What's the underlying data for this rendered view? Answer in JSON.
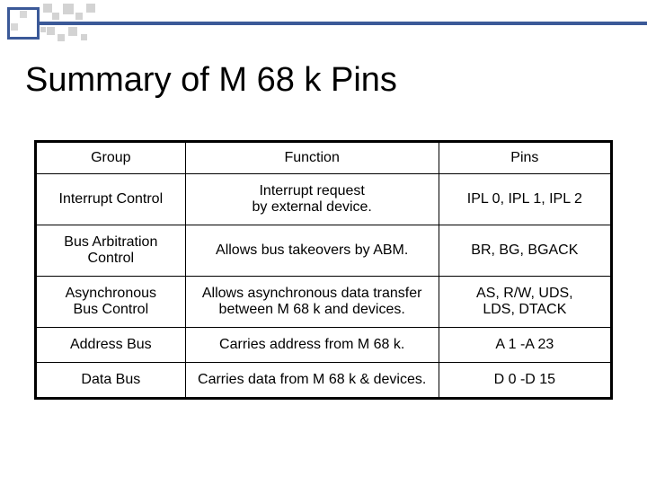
{
  "title": "Summary of M 68 k Pins",
  "table": {
    "columns": [
      "Group",
      "Function",
      "Pins"
    ],
    "rows": [
      [
        "Interrupt Control",
        "Interrupt request\nby external device.",
        "IPL 0, IPL 1, IPL 2"
      ],
      [
        "Bus Arbitration\nControl",
        "Allows bus takeovers by ABM.",
        "BR, BG, BGACK"
      ],
      [
        "Asynchronous\nBus Control",
        "Allows asynchronous data transfer\nbetween M 68 k and devices.",
        "AS, R/W, UDS,\nLDS, DTACK"
      ],
      [
        "Address Bus",
        "Carries address from M 68 k.",
        "A 1 -A 23"
      ],
      [
        "Data Bus",
        "Carries data from M 68 k & devices.",
        "D 0 -D 15"
      ]
    ]
  },
  "style": {
    "accent_color": "#3b5998",
    "text_color": "#000000",
    "background": "#ffffff",
    "title_fontsize": 38,
    "cell_fontsize": 16,
    "border_color": "#000000"
  }
}
